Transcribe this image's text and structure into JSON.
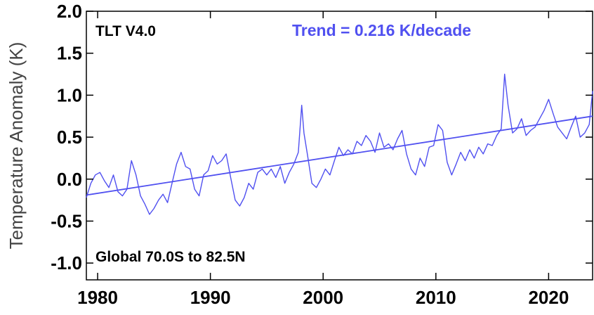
{
  "chart_data": {
    "type": "line",
    "title": "TLT V4.0",
    "trend_label": "Trend =  0.216 K/decade",
    "region_label": "Global  70.0S to  82.5N",
    "ylabel": "Temperature Anomaly (K)",
    "xlabel": "",
    "xlim": [
      1979.0,
      2023.9
    ],
    "ylim": [
      -1.2,
      2.0
    ],
    "x_ticks": [
      1980,
      1990,
      2000,
      2010,
      2020
    ],
    "x_tick_labels": [
      "1980",
      "1990",
      "2000",
      "2010",
      "2020"
    ],
    "y_ticks": [
      -1.0,
      -0.5,
      0.0,
      0.5,
      1.0,
      1.5,
      2.0
    ],
    "y_tick_labels": [
      "-1.0",
      "-0.5",
      "0.0",
      "0.5",
      "1.0",
      "1.5",
      "2.0"
    ],
    "line_color": "#5050f0",
    "grid": false,
    "series": [
      {
        "x": [
          1979.0,
          1979.4,
          1979.8,
          1980.2,
          1980.6,
          1981.0,
          1981.4,
          1981.8,
          1982.2,
          1982.6,
          1983.0,
          1983.4,
          1983.8,
          1984.2,
          1984.6,
          1985.0,
          1985.4,
          1985.8,
          1986.2,
          1986.6,
          1987.0,
          1987.4,
          1987.8,
          1988.2,
          1988.6,
          1989.0,
          1989.4,
          1989.8,
          1990.2,
          1990.6,
          1991.0,
          1991.4,
          1991.8,
          1992.2,
          1992.6,
          1993.0,
          1993.4,
          1993.8,
          1994.2,
          1994.6,
          1995.0,
          1995.4,
          1995.8,
          1996.2,
          1996.6,
          1997.0,
          1997.4,
          1997.8,
          1998.1,
          1998.3,
          1998.6,
          1999.0,
          1999.4,
          1999.8,
          2000.2,
          2000.6,
          2001.0,
          2001.4,
          2001.8,
          2002.2,
          2002.6,
          2003.0,
          2003.4,
          2003.8,
          2004.2,
          2004.6,
          2005.0,
          2005.4,
          2005.8,
          2006.2,
          2006.6,
          2007.0,
          2007.4,
          2007.8,
          2008.2,
          2008.6,
          2009.0,
          2009.4,
          2009.8,
          2010.2,
          2010.6,
          2011.0,
          2011.4,
          2011.8,
          2012.2,
          2012.6,
          2013.0,
          2013.4,
          2013.8,
          2014.2,
          2014.6,
          2015.0,
          2015.4,
          2015.8,
          2016.1,
          2016.4,
          2016.8,
          2017.2,
          2017.6,
          2018.0,
          2018.4,
          2018.8,
          2019.2,
          2019.6,
          2020.0,
          2020.4,
          2020.8,
          2021.2,
          2021.6,
          2022.0,
          2022.4,
          2022.8,
          2023.2,
          2023.6,
          2023.9
        ],
        "y": [
          -0.22,
          -0.05,
          0.05,
          0.08,
          -0.02,
          -0.1,
          0.05,
          -0.15,
          -0.2,
          -0.12,
          0.22,
          0.05,
          -0.2,
          -0.3,
          -0.42,
          -0.35,
          -0.25,
          -0.18,
          -0.28,
          -0.05,
          0.18,
          0.32,
          0.15,
          0.12,
          -0.12,
          -0.2,
          0.05,
          0.1,
          0.28,
          0.18,
          0.22,
          0.3,
          0.02,
          -0.25,
          -0.32,
          -0.22,
          -0.05,
          -0.12,
          0.08,
          0.12,
          0.05,
          0.12,
          0.02,
          0.15,
          -0.05,
          0.08,
          0.18,
          0.32,
          0.88,
          0.55,
          0.3,
          -0.05,
          -0.1,
          0.0,
          0.12,
          0.05,
          0.22,
          0.38,
          0.28,
          0.35,
          0.3,
          0.45,
          0.4,
          0.52,
          0.45,
          0.32,
          0.55,
          0.38,
          0.42,
          0.35,
          0.48,
          0.58,
          0.3,
          0.12,
          0.05,
          0.25,
          0.15,
          0.38,
          0.4,
          0.65,
          0.58,
          0.2,
          0.05,
          0.18,
          0.32,
          0.22,
          0.35,
          0.25,
          0.38,
          0.3,
          0.42,
          0.4,
          0.52,
          0.6,
          1.25,
          0.88,
          0.55,
          0.6,
          0.72,
          0.52,
          0.58,
          0.62,
          0.72,
          0.82,
          0.95,
          0.78,
          0.62,
          0.55,
          0.48,
          0.62,
          0.75,
          0.5,
          0.55,
          0.65,
          1.05
        ]
      },
      {
        "x": [
          1979.0,
          2023.9
        ],
        "y": [
          -0.19,
          0.75
        ]
      }
    ]
  }
}
